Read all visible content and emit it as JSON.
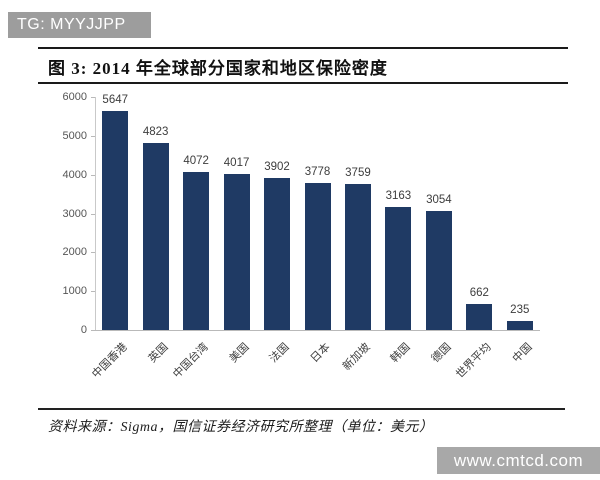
{
  "banner": {
    "label": "TG: MYYJJPP"
  },
  "figure": {
    "title": "图 3: 2014 年全球部分国家和地区保险密度"
  },
  "source": {
    "text": "资料来源：Sigma，国信证券经济研究所整理（单位：美元）"
  },
  "watermark": {
    "text": "www.cmtcd.com"
  },
  "colors": {
    "bar": "#1f3a64",
    "banner_bg": "#9d9d9d",
    "watermark_bg": "#a8a8a8",
    "axis": "#c9c9c9"
  },
  "chart_data": {
    "type": "bar",
    "title": "2014 年全球部分国家和地区保险密度",
    "categories": [
      "中国香港",
      "英国",
      "中国台湾",
      "美国",
      "法国",
      "日本",
      "新加坡",
      "韩国",
      "德国",
      "世界平均",
      "中国"
    ],
    "values": [
      5647,
      4823,
      4072,
      4017,
      3902,
      3778,
      3759,
      3163,
      3054,
      662,
      235
    ],
    "value_labels_shown": true,
    "xlabel": "",
    "ylabel": "",
    "unit": "美元",
    "ylim": [
      0,
      6000
    ],
    "yticks": [
      0,
      1000,
      2000,
      3000,
      4000,
      5000,
      6000
    ],
    "grid": false,
    "legend": "none",
    "bar_color": "#1f3a64"
  }
}
